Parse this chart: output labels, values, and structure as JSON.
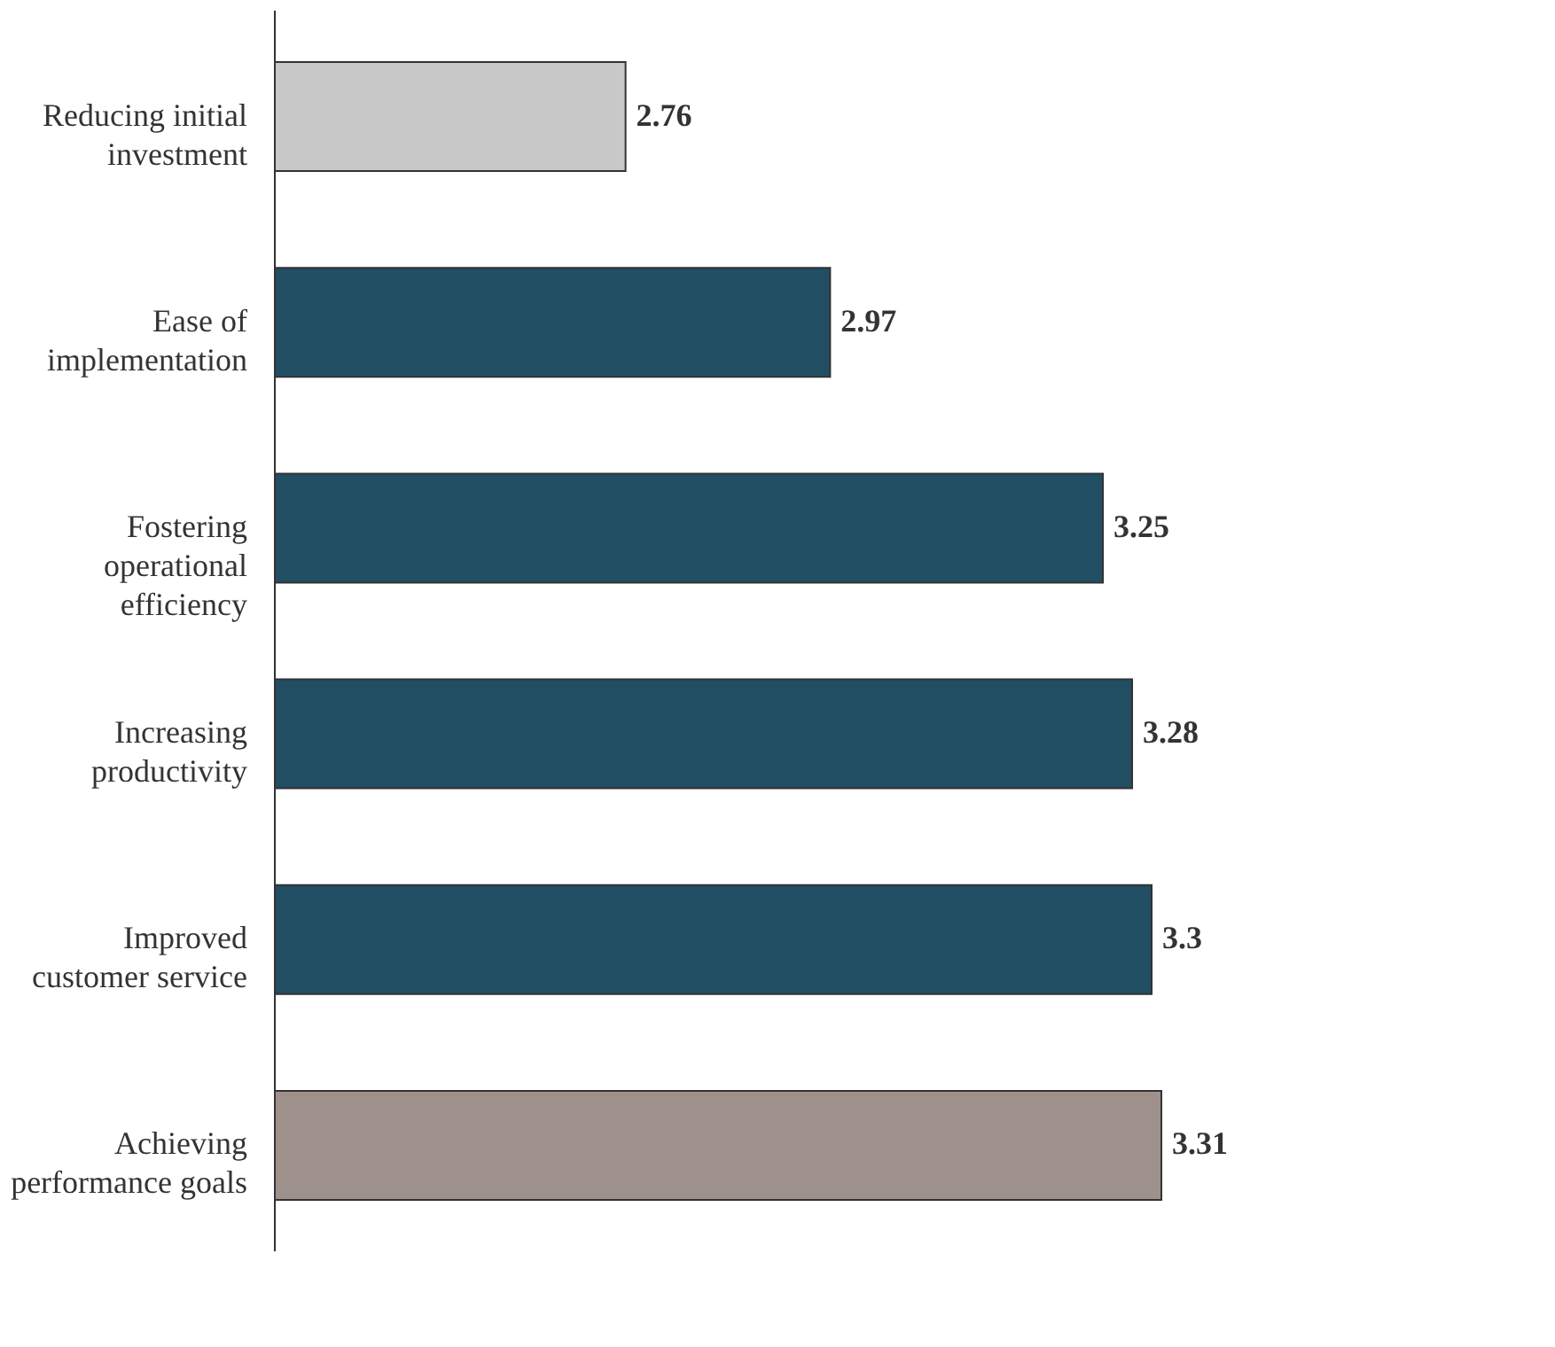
{
  "chart_data": {
    "type": "bar",
    "orientation": "horizontal",
    "categories": [
      "Reducing initial\ninvestment",
      "Ease of\nimplementation",
      "Fostering\noperational\nefficiency",
      "Increasing\nproductivity",
      "Improved\ncustomer service",
      "Achieving\nperformance goals"
    ],
    "values": [
      2.76,
      2.97,
      3.25,
      3.28,
      3.3,
      3.31
    ],
    "colors": [
      "#c8c8c8",
      "#214e63",
      "#214e63",
      "#214e63",
      "#214e63",
      "#9e918c"
    ],
    "xlim": [
      2.4,
      3.31
    ],
    "data_labels": true,
    "tick_labels": "y"
  }
}
